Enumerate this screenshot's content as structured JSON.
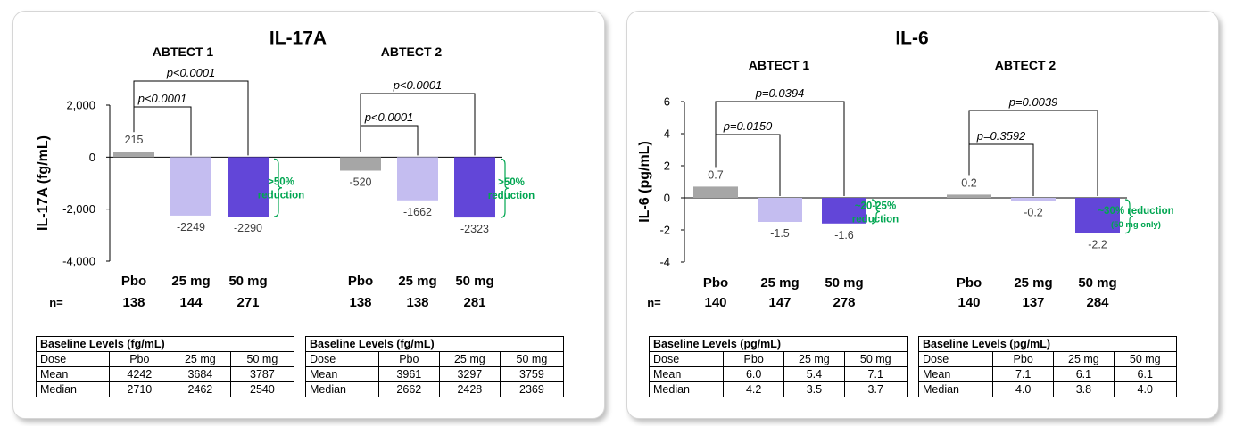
{
  "colors": {
    "pbo": "#a6a6a6",
    "mg25": "#c4bdf0",
    "mg50": "#6246d8",
    "annotation": "#00a651"
  },
  "chart_data": [
    {
      "type": "bar",
      "title": "IL-17A",
      "ylabel": "IL-17A (fg/mL)",
      "ylim": [
        -4000,
        2000
      ],
      "yticks": [
        "-4,000",
        "-2,000",
        "0",
        "2,000"
      ],
      "groups": [
        {
          "name": "ABTECT 1",
          "categories": [
            "Pbo",
            "25 mg",
            "50 mg"
          ],
          "values": [
            215,
            -2249,
            -2290
          ],
          "labels": [
            "215",
            "-2249",
            "-2290"
          ],
          "n": [
            "138",
            "144",
            "271"
          ],
          "pvalues": [
            "p<0.0001",
            "p<0.0001"
          ],
          "annotation": [
            ">50%",
            "reduction"
          ],
          "baseline": {
            "title": "Baseline Levels (fg/mL)",
            "columns": [
              "Dose",
              "Pbo",
              "25 mg",
              "50 mg"
            ],
            "rows": [
              [
                "Mean",
                "4242",
                "3684",
                "3787"
              ],
              [
                "Median",
                "2710",
                "2462",
                "2540"
              ]
            ]
          }
        },
        {
          "name": "ABTECT 2",
          "categories": [
            "Pbo",
            "25 mg",
            "50 mg"
          ],
          "values": [
            -520,
            -1662,
            -2323
          ],
          "labels": [
            "-520",
            "-1662",
            "-2323"
          ],
          "n": [
            "138",
            "138",
            "281"
          ],
          "pvalues": [
            "p<0.0001",
            "p<0.0001"
          ],
          "annotation": [
            ">50%",
            "reduction"
          ],
          "baseline": {
            "title": "Baseline Levels (fg/mL)",
            "columns": [
              "Dose",
              "Pbo",
              "25 mg",
              "50 mg"
            ],
            "rows": [
              [
                "Mean",
                "3961",
                "3297",
                "3759"
              ],
              [
                "Median",
                "2662",
                "2428",
                "2369"
              ]
            ]
          }
        }
      ],
      "n_label": "n="
    },
    {
      "type": "bar",
      "title": "IL-6",
      "ylabel": "IL-6 (pg/mL)",
      "ylim": [
        -4,
        6
      ],
      "yticks": [
        "-4",
        "-2",
        "0",
        "2",
        "4",
        "6"
      ],
      "groups": [
        {
          "name": "ABTECT 1",
          "categories": [
            "Pbo",
            "25 mg",
            "50 mg"
          ],
          "values": [
            0.7,
            -1.5,
            -1.6
          ],
          "labels": [
            "0.7",
            "-1.5",
            "-1.6"
          ],
          "n": [
            "140",
            "147",
            "278"
          ],
          "pvalues": [
            "p=0.0150",
            "p=0.0394"
          ],
          "annotation": [
            "~20-25%",
            "reduction"
          ],
          "baseline": {
            "title": "Baseline Levels (pg/mL)",
            "columns": [
              "Dose",
              "Pbo",
              "25 mg",
              "50 mg"
            ],
            "rows": [
              [
                "Mean",
                "6.0",
                "5.4",
                "7.1"
              ],
              [
                "Median",
                "4.2",
                "3.5",
                "3.7"
              ]
            ]
          }
        },
        {
          "name": "ABTECT 2",
          "categories": [
            "Pbo",
            "25 mg",
            "50 mg"
          ],
          "values": [
            0.2,
            -0.2,
            -2.2
          ],
          "labels": [
            "0.2",
            "-0.2",
            "-2.2"
          ],
          "n": [
            "140",
            "137",
            "284"
          ],
          "pvalues": [
            "p=0.3592",
            "p=0.0039"
          ],
          "annotation": [
            "~30% reduction",
            "(50 mg only)"
          ],
          "baseline": {
            "title": "Baseline Levels (pg/mL)",
            "columns": [
              "Dose",
              "Pbo",
              "25 mg",
              "50 mg"
            ],
            "rows": [
              [
                "Mean",
                "7.1",
                "6.1",
                "6.1"
              ],
              [
                "Median",
                "4.0",
                "3.8",
                "4.0"
              ]
            ]
          }
        }
      ],
      "n_label": "n="
    }
  ]
}
